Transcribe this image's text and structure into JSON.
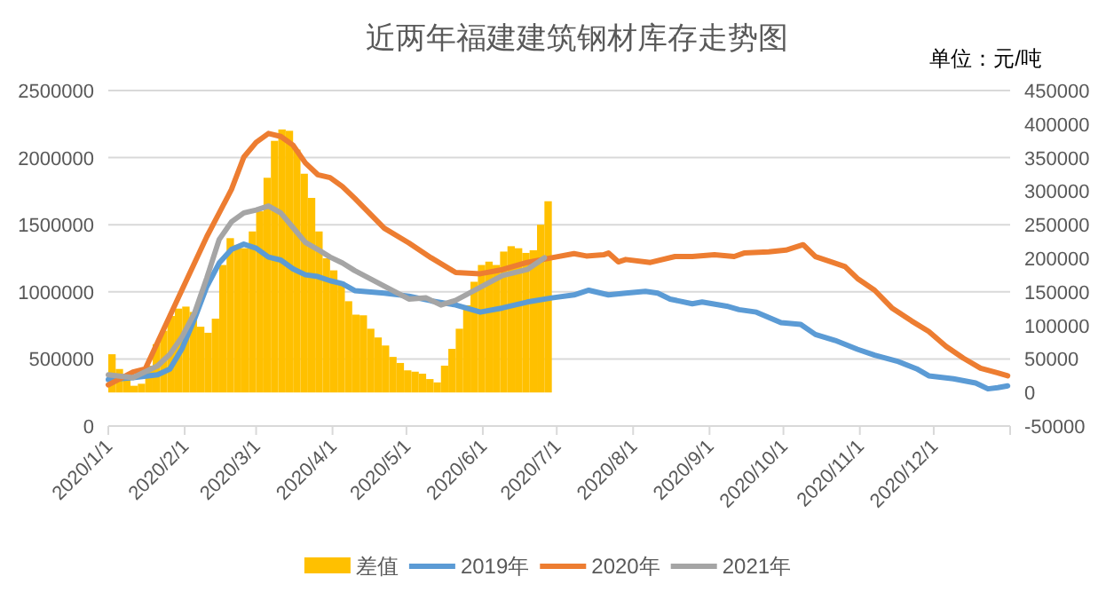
{
  "chart_data": {
    "type": "line",
    "title": "近两年福建建筑钢材库存走势图",
    "annotations": [
      "单位：元/吨"
    ],
    "xlim": [
      "2020-01-01",
      "2021-01-01"
    ],
    "xticks": [
      {
        "value": "2020-01-01",
        "label": "2020/1/1"
      },
      {
        "value": "2020-02-01",
        "label": "2020/2/1"
      },
      {
        "value": "2020-03-01",
        "label": "2020/3/1"
      },
      {
        "value": "2020-04-01",
        "label": "2020/4/1"
      },
      {
        "value": "2020-05-01",
        "label": "2020/5/1"
      },
      {
        "value": "2020-06-01",
        "label": "2020/6/1"
      },
      {
        "value": "2020-07-01",
        "label": "2020/7/1"
      },
      {
        "value": "2020-08-01",
        "label": "2020/8/1"
      },
      {
        "value": "2020-09-01",
        "label": "2020/9/1"
      },
      {
        "value": "2020-10-01",
        "label": "2020/10/1"
      },
      {
        "value": "2020-11-01",
        "label": "2020/11/1"
      },
      {
        "value": "2020-12-01",
        "label": "2020/12/1"
      }
    ],
    "ylim": [
      0,
      2500000
    ],
    "yticks": [
      0,
      500000,
      1000000,
      1500000,
      2000000,
      2500000
    ],
    "y2lim": [
      -50000,
      450000
    ],
    "y2ticks": [
      -50000,
      0,
      50000,
      100000,
      150000,
      200000,
      250000,
      300000,
      350000,
      400000,
      450000
    ],
    "grid": "y",
    "legend": "bottom",
    "series": [
      {
        "name": "差值",
        "type": "bar",
        "axis": "y2",
        "color": "#ffc000",
        "x": [
          "2020-01-01",
          "2020-01-04",
          "2020-01-07",
          "2020-01-10",
          "2020-01-13",
          "2020-01-16",
          "2020-01-19",
          "2020-01-22",
          "2020-01-25",
          "2020-01-28",
          "2020-01-31",
          "2020-02-03",
          "2020-02-06",
          "2020-02-09",
          "2020-02-12",
          "2020-02-15",
          "2020-02-18",
          "2020-02-21",
          "2020-02-24",
          "2020-02-27",
          "2020-03-01",
          "2020-03-04",
          "2020-03-07",
          "2020-03-10",
          "2020-03-13",
          "2020-03-16",
          "2020-03-19",
          "2020-03-22",
          "2020-03-25",
          "2020-03-28",
          "2020-03-31",
          "2020-04-03",
          "2020-04-06",
          "2020-04-09",
          "2020-04-12",
          "2020-04-15",
          "2020-04-18",
          "2020-04-21",
          "2020-04-24",
          "2020-04-27",
          "2020-04-30",
          "2020-05-03",
          "2020-05-06",
          "2020-05-09",
          "2020-05-12",
          "2020-05-15",
          "2020-05-18",
          "2020-05-21",
          "2020-05-24",
          "2020-05-27",
          "2020-05-30",
          "2020-06-02",
          "2020-06-05",
          "2020-06-08",
          "2020-06-11",
          "2020-06-14",
          "2020-06-17",
          "2020-06-20",
          "2020-06-23",
          "2020-06-26"
        ],
        "values": [
          57000,
          35000,
          24000,
          10000,
          13000,
          40000,
          72000,
          92000,
          114000,
          125000,
          128000,
          120000,
          98000,
          89000,
          110000,
          190000,
          230000,
          220000,
          215000,
          240000,
          270000,
          320000,
          375000,
          392000,
          390000,
          362000,
          326000,
          290000,
          240000,
          200000,
          182000,
          165000,
          136000,
          116000,
          115000,
          95000,
          82000,
          70000,
          53000,
          44000,
          33000,
          31000,
          28000,
          20000,
          15000,
          40000,
          65000,
          95000,
          130000,
          165000,
          190000,
          195000,
          190000,
          210000,
          218000,
          215000,
          208000,
          212000,
          250000,
          285000
        ]
      },
      {
        "name": "2019年",
        "color": "#5b9bd5",
        "x": [
          "2020-01-01",
          "2020-01-11",
          "2020-01-21",
          "2020-01-26",
          "2020-01-31",
          "2020-02-05",
          "2020-02-10",
          "2020-02-15",
          "2020-02-20",
          "2020-02-25",
          "2020-03-01",
          "2020-03-06",
          "2020-03-11",
          "2020-03-16",
          "2020-03-21",
          "2020-03-26",
          "2020-03-31",
          "2020-04-05",
          "2020-04-10",
          "2020-04-22",
          "2020-05-02",
          "2020-05-11",
          "2020-05-21",
          "2020-05-31",
          "2020-06-09",
          "2020-06-19",
          "2020-06-29",
          "2020-07-08",
          "2020-07-14",
          "2020-07-22",
          "2020-07-29",
          "2020-08-06",
          "2020-08-11",
          "2020-08-16",
          "2020-08-25",
          "2020-08-29",
          "2020-09-08",
          "2020-09-13",
          "2020-09-20",
          "2020-09-30",
          "2020-10-08",
          "2020-10-14",
          "2020-10-22",
          "2020-10-31",
          "2020-11-07",
          "2020-11-16",
          "2020-11-24",
          "2020-11-29",
          "2020-12-09",
          "2020-12-18",
          "2020-12-23",
          "2020-12-27",
          "2020-12-31"
        ],
        "values": [
          346000,
          360000,
          382000,
          425000,
          579000,
          798000,
          1040000,
          1215000,
          1316000,
          1355000,
          1325000,
          1259000,
          1237000,
          1171000,
          1127000,
          1114000,
          1083000,
          1061000,
          1009000,
          990000,
          968000,
          933000,
          902000,
          849000,
          880000,
          924000,
          955000,
          977000,
          1012000,
          977000,
          990000,
          1003000,
          990000,
          946000,
          911000,
          924000,
          893000,
          867000,
          849000,
          770000,
          757000,
          682000,
          638000,
          572000,
          528000,
          484000,
          427000,
          374000,
          352000,
          321000,
          277000,
          286000,
          299000
        ]
      },
      {
        "name": "2020年",
        "color": "#ed7d31",
        "x": [
          "2020-01-01",
          "2020-01-11",
          "2020-01-16",
          "2020-01-21",
          "2020-01-31",
          "2020-02-10",
          "2020-02-20",
          "2020-02-25",
          "2020-03-01",
          "2020-03-06",
          "2020-03-11",
          "2020-03-16",
          "2020-03-21",
          "2020-03-26",
          "2020-03-31",
          "2020-04-05",
          "2020-04-10",
          "2020-04-22",
          "2020-05-02",
          "2020-05-11",
          "2020-05-21",
          "2020-05-31",
          "2020-06-09",
          "2020-06-19",
          "2020-06-29",
          "2020-07-08",
          "2020-07-13",
          "2020-07-20",
          "2020-07-22",
          "2020-07-26",
          "2020-07-29",
          "2020-08-08",
          "2020-08-18",
          "2020-08-25",
          "2020-09-03",
          "2020-09-11",
          "2020-09-15",
          "2020-09-25",
          "2020-10-02",
          "2020-10-09",
          "2020-10-14",
          "2020-10-21",
          "2020-10-26",
          "2020-10-31",
          "2020-11-07",
          "2020-11-14",
          "2020-11-22",
          "2020-11-29",
          "2020-12-06",
          "2020-12-13",
          "2020-12-20",
          "2020-12-27",
          "2020-12-31"
        ],
        "values": [
          307000,
          403000,
          425000,
          623000,
          1018000,
          1412000,
          1763000,
          2004000,
          2114000,
          2180000,
          2158000,
          2092000,
          1960000,
          1873000,
          1851000,
          1785000,
          1697000,
          1474000,
          1364000,
          1254000,
          1144000,
          1135000,
          1166000,
          1219000,
          1254000,
          1285000,
          1267000,
          1276000,
          1289000,
          1223000,
          1241000,
          1219000,
          1263000,
          1263000,
          1276000,
          1263000,
          1289000,
          1298000,
          1311000,
          1351000,
          1262000,
          1219000,
          1188000,
          1100000,
          1012000,
          880000,
          783000,
          704000,
          594000,
          506000,
          431000,
          396000,
          374000
        ]
      },
      {
        "name": "2021年",
        "color": "#a5a5a5",
        "x": [
          "2020-01-01",
          "2020-01-11",
          "2020-01-21",
          "2020-01-26",
          "2020-01-31",
          "2020-02-05",
          "2020-02-10",
          "2020-02-15",
          "2020-02-20",
          "2020-02-25",
          "2020-03-01",
          "2020-03-06",
          "2020-03-11",
          "2020-03-16",
          "2020-03-21",
          "2020-03-26",
          "2020-03-31",
          "2020-04-05",
          "2020-04-10",
          "2020-04-22",
          "2020-05-02",
          "2020-05-09",
          "2020-05-15",
          "2020-05-21",
          "2020-05-31",
          "2020-06-09",
          "2020-06-19",
          "2020-06-26"
        ],
        "values": [
          382000,
          360000,
          448000,
          535000,
          667000,
          842000,
          1105000,
          1390000,
          1522000,
          1588000,
          1610000,
          1640000,
          1588000,
          1478000,
          1368000,
          1316000,
          1259000,
          1215000,
          1158000,
          1043000,
          946000,
          955000,
          902000,
          937000,
          1034000,
          1122000,
          1166000,
          1254000
        ]
      }
    ]
  }
}
